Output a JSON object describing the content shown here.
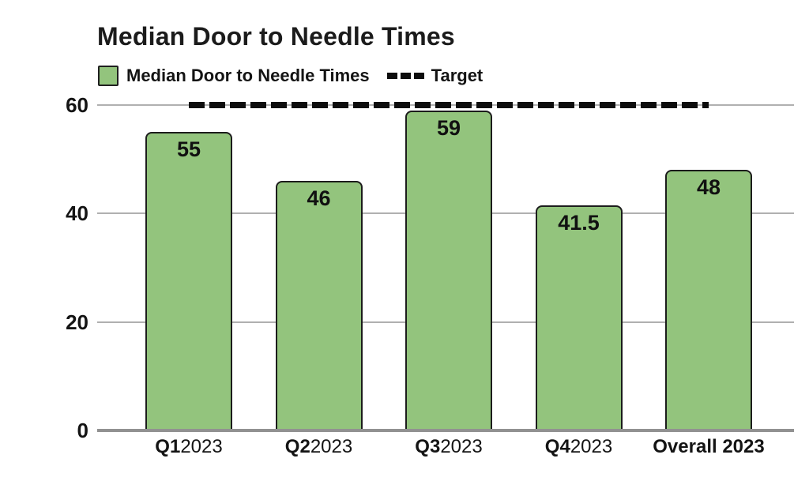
{
  "title": "Median Door to Needle Times",
  "legend": {
    "series_label": "Median Door to Needle Times",
    "target_label": "Target"
  },
  "chart_data": {
    "type": "bar",
    "title": "Median Door to Needle Times",
    "categories": [
      "Q1 2023",
      "Q2 2023",
      "Q3 2023",
      "Q4 2023",
      "Overall 2023"
    ],
    "category_parts": [
      {
        "bold": "Q1",
        "regular": "2023"
      },
      {
        "bold": "Q2",
        "regular": "2023"
      },
      {
        "bold": "Q3",
        "regular": "2023"
      },
      {
        "bold": "Q4",
        "regular": "2023"
      },
      {
        "bold": "Overall 2023",
        "regular": ""
      }
    ],
    "series": [
      {
        "name": "Median Door to Needle Times",
        "values": [
          55,
          46,
          59,
          41.5,
          48
        ]
      }
    ],
    "value_labels": [
      "55",
      "46",
      "59",
      "41.5",
      "48"
    ],
    "target": 60,
    "ylim": [
      0,
      60
    ],
    "yticks": [
      0,
      20,
      40,
      60
    ],
    "grid": true,
    "legend_position": "top-left",
    "colors": {
      "bar_fill": "#93c47d",
      "bar_border": "#1c1c1c",
      "target_line": "#0d0d0d",
      "gridline": "#b0b0b0",
      "axis_line": "#919191",
      "text": "#111111"
    }
  }
}
